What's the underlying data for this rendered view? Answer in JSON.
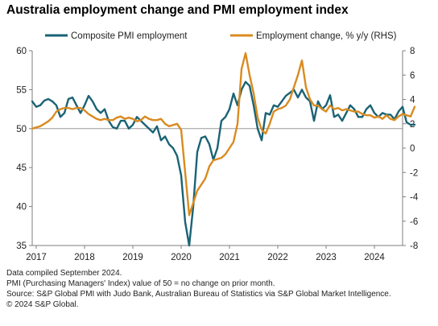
{
  "title": "Australia employment change and PMI employment index",
  "colors": {
    "pmi": "#1a6375",
    "employment": "#d98b20",
    "axis": "#7f7f7f",
    "reference": "#9a9a9a"
  },
  "notes": [
    "Data compiled September 2024.",
    "PMI (Purchasing Managers' Index) value of 50 = no change on prior month.",
    "Source: S&P Global PMI with Judo Bank, Australian Bureau of Statistics via S&P Global Market Intelligence.",
    "© 2024 S&P Global."
  ],
  "chart_data": {
    "type": "line",
    "x_ticks": [
      "2017",
      "2018",
      "2019",
      "2020",
      "2021",
      "2022",
      "2023",
      "2024"
    ],
    "x_range": [
      "2016-12",
      "2024-08"
    ],
    "ylim": [
      35,
      60
    ],
    "y_ticks": [
      "35",
      "40",
      "45",
      "50",
      "55",
      "60"
    ],
    "y2lim": [
      -8,
      8
    ],
    "y2_ticks": [
      "-8",
      "-6",
      "-4",
      "-2",
      "0",
      "2",
      "4",
      "6",
      "8"
    ],
    "reference_line": 50,
    "grid": false,
    "legend_position": "top",
    "series": [
      {
        "name": "Composite PMI employment",
        "axis": "left",
        "start": "2016-12",
        "values": [
          53.5,
          52.8,
          53.0,
          53.6,
          53.8,
          53.5,
          53.0,
          51.5,
          52.0,
          53.8,
          54.0,
          53.0,
          52.0,
          53.0,
          54.2,
          53.5,
          52.5,
          52.0,
          52.5,
          51.0,
          50.2,
          50.0,
          51.0,
          51.0,
          50.0,
          50.5,
          51.5,
          51.0,
          50.5,
          50.0,
          49.5,
          50.3,
          48.5,
          49.0,
          48.0,
          47.5,
          46.5,
          44.0,
          38.0,
          35.0,
          40.0,
          47.0,
          48.8,
          49.0,
          48.0,
          46.0,
          47.5,
          51.0,
          51.5,
          52.5,
          54.5,
          53.0,
          55.0,
          56.0,
          55.5,
          53.0,
          50.0,
          48.5,
          52.0,
          51.8,
          53.0,
          52.8,
          53.5,
          54.2,
          54.6,
          55.0,
          54.0,
          55.0,
          54.0,
          53.5,
          51.0,
          53.5,
          52.5,
          53.0,
          54.3,
          51.5,
          51.8,
          51.0,
          52.0,
          53.0,
          52.5,
          51.5,
          51.5,
          52.5,
          53.0,
          52.0,
          51.5,
          52.0,
          51.8,
          51.8,
          51.2,
          52.2,
          52.8,
          50.8,
          50.5,
          50.5
        ]
      },
      {
        "name": "Employment change, % y/y (RHS)",
        "axis": "right",
        "start": "2016-12",
        "values": [
          1.6,
          1.7,
          1.8,
          2.0,
          2.2,
          2.5,
          3.0,
          3.2,
          3.3,
          3.3,
          3.2,
          3.3,
          3.3,
          3.1,
          2.8,
          2.6,
          2.4,
          2.3,
          2.4,
          2.3,
          2.3,
          2.5,
          2.6,
          2.4,
          2.5,
          2.4,
          2.2,
          2.3,
          2.6,
          2.4,
          2.3,
          2.3,
          2.4,
          2.0,
          1.8,
          1.9,
          2.0,
          1.5,
          -2.0,
          -5.5,
          -4.5,
          -3.5,
          -3.0,
          -2.5,
          -1.5,
          -1.0,
          -0.9,
          -0.8,
          -0.5,
          0.0,
          0.5,
          2.0,
          6.5,
          7.8,
          6.0,
          4.5,
          2.5,
          1.5,
          1.2,
          2.0,
          3.0,
          3.2,
          3.3,
          3.5,
          4.0,
          5.0,
          6.0,
          7.2,
          5.0,
          4.0,
          3.5,
          3.5,
          3.2,
          3.0,
          3.5,
          3.2,
          3.3,
          3.1,
          3.2,
          3.1,
          3.0,
          3.0,
          2.8,
          2.7,
          2.7,
          2.5,
          2.6,
          2.4,
          2.7,
          2.4,
          2.3,
          2.6,
          2.8,
          2.7,
          2.6,
          3.4
        ]
      }
    ]
  }
}
